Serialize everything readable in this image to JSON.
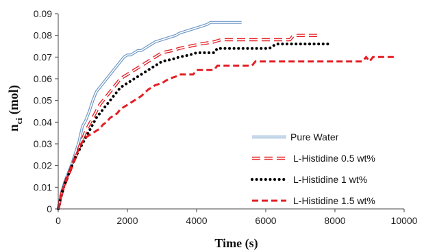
{
  "chart_data": {
    "type": "line",
    "xlabel": "Time (s)",
    "ylabel_main": "n",
    "ylabel_sub": "ci",
    "ylabel_unit": " (mol)",
    "xlim": [
      0,
      10000
    ],
    "ylim": [
      0,
      0.09
    ],
    "x_ticks": [
      "0",
      "2000",
      "4000",
      "6000",
      "8000",
      "10000"
    ],
    "y_ticks": [
      "0",
      "0.01",
      "0.02",
      "0.03",
      "0.04",
      "0.05",
      "0.06",
      "0.07",
      "0.08",
      "0.09"
    ],
    "grid": false,
    "legend_position": "bottom-right",
    "series": [
      {
        "name": "Pure Water",
        "color": "#6f98c6",
        "style": "double",
        "points": [
          [
            0,
            0
          ],
          [
            100,
            0.008
          ],
          [
            200,
            0.013
          ],
          [
            300,
            0.017
          ],
          [
            400,
            0.021
          ],
          [
            500,
            0.026
          ],
          [
            600,
            0.031
          ],
          [
            700,
            0.038
          ],
          [
            800,
            0.041
          ],
          [
            900,
            0.045
          ],
          [
            1000,
            0.05
          ],
          [
            1100,
            0.054
          ],
          [
            1200,
            0.056
          ],
          [
            1300,
            0.058
          ],
          [
            1400,
            0.06
          ],
          [
            1500,
            0.062
          ],
          [
            1600,
            0.064
          ],
          [
            1700,
            0.066
          ],
          [
            1800,
            0.068
          ],
          [
            1900,
            0.07
          ],
          [
            2000,
            0.071
          ],
          [
            2100,
            0.071
          ],
          [
            2200,
            0.072
          ],
          [
            2300,
            0.073
          ],
          [
            2400,
            0.073
          ],
          [
            2500,
            0.074
          ],
          [
            2600,
            0.075
          ],
          [
            2700,
            0.076
          ],
          [
            2800,
            0.077
          ],
          [
            3000,
            0.078
          ],
          [
            3200,
            0.079
          ],
          [
            3400,
            0.08
          ],
          [
            3500,
            0.081
          ],
          [
            3700,
            0.082
          ],
          [
            3900,
            0.083
          ],
          [
            4100,
            0.084
          ],
          [
            4300,
            0.085
          ],
          [
            4400,
            0.086
          ],
          [
            5300,
            0.086
          ]
        ]
      },
      {
        "name": "L-Histidine  0.5 wt%",
        "color": "#e31e24",
        "style": "hollow-dash",
        "points": [
          [
            0,
            0
          ],
          [
            100,
            0.007
          ],
          [
            200,
            0.012
          ],
          [
            300,
            0.016
          ],
          [
            400,
            0.02
          ],
          [
            500,
            0.024
          ],
          [
            600,
            0.028
          ],
          [
            700,
            0.032
          ],
          [
            800,
            0.036
          ],
          [
            900,
            0.039
          ],
          [
            1000,
            0.042
          ],
          [
            1100,
            0.045
          ],
          [
            1200,
            0.048
          ],
          [
            1300,
            0.05
          ],
          [
            1400,
            0.052
          ],
          [
            1500,
            0.054
          ],
          [
            1600,
            0.056
          ],
          [
            1700,
            0.058
          ],
          [
            1800,
            0.06
          ],
          [
            1900,
            0.061
          ],
          [
            2000,
            0.062
          ],
          [
            2200,
            0.064
          ],
          [
            2400,
            0.066
          ],
          [
            2600,
            0.068
          ],
          [
            2800,
            0.07
          ],
          [
            3000,
            0.072
          ],
          [
            3300,
            0.073
          ],
          [
            3500,
            0.074
          ],
          [
            3800,
            0.075
          ],
          [
            4100,
            0.076
          ],
          [
            4500,
            0.077
          ],
          [
            4700,
            0.078
          ],
          [
            6700,
            0.078
          ],
          [
            6800,
            0.08
          ],
          [
            7600,
            0.08
          ]
        ]
      },
      {
        "name": "L-Histidine  1    wt%",
        "color": "#000000",
        "style": "dotted",
        "points": [
          [
            0,
            0
          ],
          [
            100,
            0.007
          ],
          [
            200,
            0.012
          ],
          [
            300,
            0.016
          ],
          [
            400,
            0.02
          ],
          [
            500,
            0.024
          ],
          [
            600,
            0.027
          ],
          [
            700,
            0.03
          ],
          [
            800,
            0.033
          ],
          [
            900,
            0.036
          ],
          [
            1000,
            0.039
          ],
          [
            1100,
            0.042
          ],
          [
            1200,
            0.044
          ],
          [
            1300,
            0.046
          ],
          [
            1400,
            0.048
          ],
          [
            1500,
            0.05
          ],
          [
            1600,
            0.052
          ],
          [
            1700,
            0.054
          ],
          [
            1800,
            0.056
          ],
          [
            1900,
            0.057
          ],
          [
            2000,
            0.058
          ],
          [
            2200,
            0.06
          ],
          [
            2400,
            0.062
          ],
          [
            2600,
            0.064
          ],
          [
            2800,
            0.066
          ],
          [
            3000,
            0.068
          ],
          [
            3300,
            0.069
          ],
          [
            3500,
            0.07
          ],
          [
            3800,
            0.071
          ],
          [
            4000,
            0.072
          ],
          [
            4500,
            0.072
          ],
          [
            4600,
            0.074
          ],
          [
            6100,
            0.074
          ],
          [
            6300,
            0.076
          ],
          [
            7800,
            0.076
          ]
        ]
      },
      {
        "name": "L-Histidine  1.5  wt%",
        "color": "#e31e24",
        "style": "dashed",
        "points": [
          [
            0,
            0
          ],
          [
            100,
            0.007
          ],
          [
            200,
            0.012
          ],
          [
            300,
            0.016
          ],
          [
            400,
            0.02
          ],
          [
            500,
            0.024
          ],
          [
            600,
            0.028
          ],
          [
            700,
            0.031
          ],
          [
            800,
            0.033
          ],
          [
            900,
            0.034
          ],
          [
            1000,
            0.035
          ],
          [
            1200,
            0.037
          ],
          [
            1300,
            0.039
          ],
          [
            1400,
            0.04
          ],
          [
            1500,
            0.042
          ],
          [
            1700,
            0.044
          ],
          [
            1800,
            0.046
          ],
          [
            2000,
            0.048
          ],
          [
            2200,
            0.05
          ],
          [
            2400,
            0.052
          ],
          [
            2600,
            0.055
          ],
          [
            2800,
            0.057
          ],
          [
            3000,
            0.058
          ],
          [
            3200,
            0.06
          ],
          [
            3400,
            0.061
          ],
          [
            3500,
            0.062
          ],
          [
            3900,
            0.062
          ],
          [
            4000,
            0.064
          ],
          [
            4500,
            0.064
          ],
          [
            4600,
            0.066
          ],
          [
            5600,
            0.066
          ],
          [
            5700,
            0.068
          ],
          [
            8800,
            0.068
          ],
          [
            8900,
            0.07
          ],
          [
            9000,
            0.068
          ],
          [
            9100,
            0.07
          ],
          [
            9800,
            0.07
          ]
        ]
      }
    ]
  }
}
